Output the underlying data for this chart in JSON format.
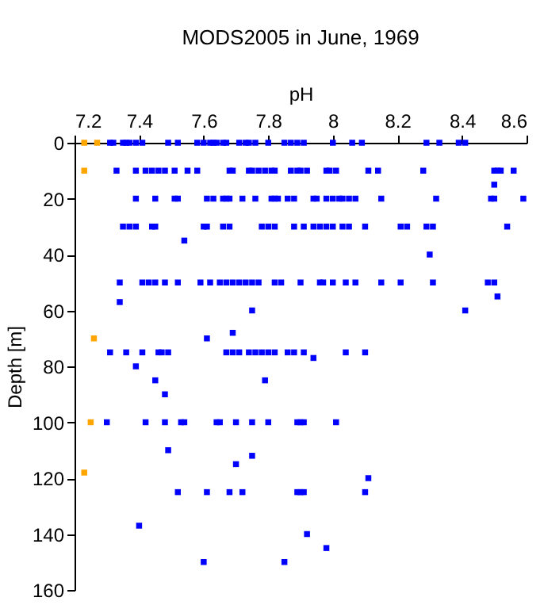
{
  "chart_data": {
    "type": "scatter",
    "title": "MODS2005 in June, 1969",
    "xlabel": "pH",
    "ylabel": "Depth [m]",
    "xlim": [
      7.2,
      8.6
    ],
    "xticks": [
      7.2,
      7.4,
      7.6,
      7.8,
      8,
      8.2,
      8.4,
      8.6
    ],
    "ylim": [
      160,
      0
    ],
    "yticks": [
      0,
      20,
      40,
      60,
      80,
      100,
      120,
      140,
      160
    ],
    "grid": false,
    "legend": false,
    "marker": "square",
    "series": [
      {
        "color": "#ffa500",
        "x": [
          7.23,
          7.27,
          7.23,
          7.26,
          7.25,
          7.23
        ],
        "values": [
          0,
          0,
          10,
          70,
          100,
          118
        ]
      },
      {
        "color": "#0000ff",
        "x": [
          7.31,
          7.32,
          7.35,
          7.36,
          7.37,
          7.39,
          7.41,
          7.49,
          7.52,
          7.58,
          7.6,
          7.62,
          7.63,
          7.64,
          7.66,
          7.67,
          7.71,
          7.73,
          7.74,
          7.76,
          7.8,
          7.85,
          7.87,
          7.89,
          7.91,
          8.0,
          8.06,
          8.09,
          8.29,
          8.33,
          8.39,
          8.41,
          7.33,
          7.39,
          7.42,
          7.44,
          7.46,
          7.48,
          7.51,
          7.55,
          7.58,
          7.68,
          7.69,
          7.74,
          7.75,
          7.77,
          7.79,
          7.81,
          7.82,
          7.87,
          7.89,
          7.9,
          7.92,
          7.98,
          7.99,
          8.01,
          8.11,
          8.14,
          8.28,
          8.5,
          8.51,
          8.52,
          8.56,
          8.5,
          7.39,
          7.45,
          7.51,
          7.52,
          7.61,
          7.63,
          7.66,
          7.67,
          7.68,
          7.72,
          7.76,
          7.81,
          7.82,
          7.83,
          7.86,
          7.88,
          7.94,
          7.95,
          7.98,
          8.0,
          8.02,
          8.03,
          8.05,
          8.07,
          8.15,
          8.32,
          8.49,
          8.5,
          8.59,
          7.35,
          7.37,
          7.39,
          7.44,
          7.45,
          7.6,
          7.61,
          7.66,
          7.68,
          7.78,
          7.8,
          7.82,
          7.88,
          7.91,
          7.94,
          7.96,
          7.98,
          8.0,
          8.03,
          8.05,
          8.1,
          8.21,
          8.23,
          8.29,
          8.31,
          8.54,
          7.54,
          8.3,
          7.34,
          7.41,
          7.43,
          7.45,
          7.48,
          7.52,
          7.59,
          7.62,
          7.65,
          7.67,
          7.69,
          7.71,
          7.73,
          7.75,
          7.77,
          7.82,
          7.84,
          7.9,
          7.96,
          7.97,
          8.0,
          8.04,
          8.07,
          8.15,
          8.21,
          8.31,
          8.48,
          8.5,
          7.34,
          8.51,
          7.75,
          8.41,
          7.61,
          7.69,
          7.31,
          7.36,
          7.41,
          7.46,
          7.47,
          7.49,
          7.67,
          7.69,
          7.71,
          7.74,
          7.76,
          7.78,
          7.8,
          7.82,
          7.86,
          7.88,
          7.91,
          8.04,
          8.1,
          7.94,
          7.39,
          7.45,
          7.48,
          7.79,
          7.3,
          7.42,
          7.48,
          7.53,
          7.54,
          7.64,
          7.65,
          7.7,
          7.75,
          7.8,
          7.89,
          7.9,
          7.91,
          8.01,
          7.49,
          7.75,
          7.7,
          7.52,
          7.61,
          7.68,
          7.72,
          7.89,
          7.9,
          7.91,
          8.1,
          8.11,
          7.4,
          7.92,
          7.98,
          7.6,
          7.85
        ],
        "values": [
          0,
          0,
          0,
          0,
          0,
          0,
          0,
          0,
          0,
          0,
          0,
          0,
          0,
          0,
          0,
          0,
          0,
          0,
          0,
          0,
          0,
          0,
          0,
          0,
          0,
          0,
          0,
          0,
          0,
          0,
          0,
          0,
          10,
          10,
          10,
          10,
          10,
          10,
          10,
          10,
          10,
          10,
          10,
          10,
          10,
          10,
          10,
          10,
          10,
          10,
          10,
          10,
          10,
          10,
          10,
          10,
          10,
          10,
          10,
          10,
          10,
          10,
          10,
          15,
          20,
          20,
          20,
          20,
          20,
          20,
          20,
          20,
          20,
          20,
          20,
          20,
          20,
          20,
          20,
          20,
          20,
          20,
          20,
          20,
          20,
          20,
          20,
          20,
          20,
          20,
          20,
          20,
          20,
          30,
          30,
          30,
          30,
          30,
          30,
          30,
          30,
          30,
          30,
          30,
          30,
          30,
          30,
          30,
          30,
          30,
          30,
          30,
          30,
          30,
          30,
          30,
          30,
          30,
          30,
          35,
          40,
          50,
          50,
          50,
          50,
          50,
          50,
          50,
          50,
          50,
          50,
          50,
          50,
          50,
          50,
          50,
          50,
          50,
          50,
          50,
          50,
          50,
          50,
          50,
          50,
          50,
          50,
          50,
          50,
          57,
          55,
          60,
          60,
          70,
          68,
          75,
          75,
          75,
          75,
          75,
          75,
          75,
          75,
          75,
          75,
          75,
          75,
          75,
          75,
          75,
          75,
          75,
          75,
          75,
          77,
          80,
          85,
          90,
          85,
          100,
          100,
          100,
          100,
          100,
          100,
          100,
          100,
          100,
          100,
          100,
          100,
          100,
          100,
          110,
          112,
          115,
          125,
          125,
          125,
          125,
          125,
          125,
          125,
          125,
          120,
          137,
          140,
          145,
          150,
          150
        ]
      }
    ]
  }
}
